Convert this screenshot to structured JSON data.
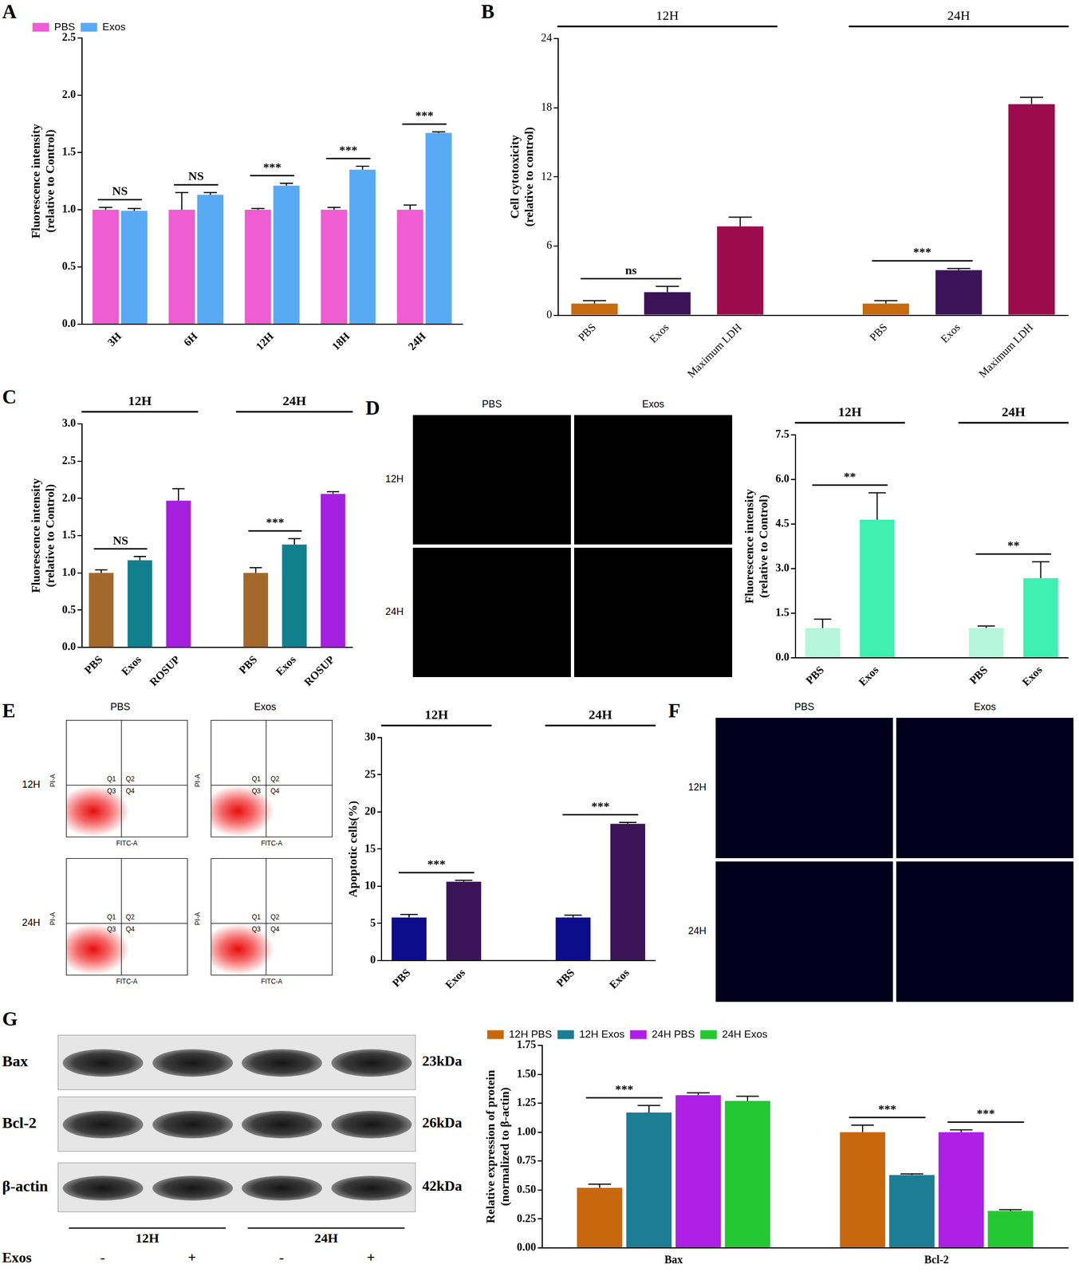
{
  "chart_data": [
    {
      "panel": "A",
      "type": "bar",
      "y_label": [
        "Fluorescence intensity",
        "(relative to Control)"
      ],
      "categories": [
        "3H",
        "6H",
        "12H",
        "18H",
        "24H"
      ],
      "series": [
        {
          "name": "PBS",
          "color": "#f05cd2",
          "values": [
            1.0,
            1.0,
            1.0,
            1.0,
            1.0
          ],
          "errors": [
            0.02,
            0.15,
            0.01,
            0.02,
            0.04
          ]
        },
        {
          "name": "Exos",
          "color": "#58aaf5",
          "values": [
            0.99,
            1.13,
            1.21,
            1.35,
            1.67
          ],
          "errors": [
            0.02,
            0.02,
            0.02,
            0.03,
            0.01
          ]
        }
      ],
      "ylim": [
        0,
        2.5
      ],
      "yticks": [
        {
          "value": 0,
          "label": "0.0"
        },
        {
          "value": 0.5,
          "label": "0.5"
        },
        {
          "value": 1,
          "label": "1.0"
        },
        {
          "value": 1.5,
          "label": "1.5"
        },
        {
          "value": 2,
          "label": "2.0"
        },
        {
          "value": 2.5,
          "label": "2.5"
        }
      ],
      "grid": false,
      "legend": "top-left",
      "significance": [
        {
          "category": "3H",
          "between": [
            "PBS",
            "Exos"
          ],
          "label": "NS"
        },
        {
          "category": "6H",
          "between": [
            "PBS",
            "Exos"
          ],
          "label": "NS"
        },
        {
          "category": "12H",
          "between": [
            "PBS",
            "Exos"
          ],
          "label": "***"
        },
        {
          "category": "18H",
          "between": [
            "PBS",
            "Exos"
          ],
          "label": "***"
        },
        {
          "category": "24H",
          "between": [
            "PBS",
            "Exos"
          ],
          "label": "***"
        }
      ]
    },
    {
      "panel": "B",
      "type": "bar",
      "y_label": [
        "Cell cytotoxicity",
        "(relative to control)"
      ],
      "groups": [
        {
          "name": "12H",
          "categories": [
            "PBS",
            "Exos",
            "Maximum LDH"
          ],
          "values": [
            1.0,
            2.0,
            7.7
          ],
          "errors": [
            0.25,
            0.5,
            0.8
          ],
          "colors": [
            "#c8690e",
            "#3b1458",
            "#9c0c4c"
          ]
        },
        {
          "name": "24H",
          "categories": [
            "PBS",
            "Exos",
            "Maximum LDH"
          ],
          "values": [
            1.0,
            3.9,
            18.3
          ],
          "errors": [
            0.25,
            0.15,
            0.6
          ],
          "colors": [
            "#c8690e",
            "#3b1458",
            "#9c0c4c"
          ]
        }
      ],
      "ylim": [
        0,
        24
      ],
      "yticks": [
        0,
        6,
        12,
        18,
        24
      ],
      "grid": false,
      "significance": [
        {
          "group": "12H",
          "between": [
            "PBS",
            "Exos"
          ],
          "label": "ns"
        },
        {
          "group": "24H",
          "between": [
            "PBS",
            "Exos"
          ],
          "label": "***"
        }
      ]
    },
    {
      "panel": "C",
      "type": "bar",
      "y_label": [
        "Fluorescence intensity",
        "(relative to Control)"
      ],
      "groups": [
        {
          "name": "12H",
          "categories": [
            "PBS",
            "Exos",
            "ROSUP"
          ],
          "values": [
            1.0,
            1.17,
            1.97
          ],
          "errors": [
            0.04,
            0.05,
            0.16
          ],
          "colors": [
            "#a2692b",
            "#10808f",
            "#a520de"
          ]
        },
        {
          "name": "24H",
          "categories": [
            "PBS",
            "Exos",
            "ROSUP"
          ],
          "values": [
            1.0,
            1.38,
            2.06
          ],
          "errors": [
            0.07,
            0.08,
            0.03
          ],
          "colors": [
            "#a2692b",
            "#10808f",
            "#a520de"
          ]
        }
      ],
      "ylim": [
        0,
        3
      ],
      "yticks": [
        {
          "value": 0,
          "label": "0.0"
        },
        {
          "value": 0.5,
          "label": "0.5"
        },
        {
          "value": 1,
          "label": "1.0"
        },
        {
          "value": 1.5,
          "label": "1.5"
        },
        {
          "value": 2,
          "label": "2.0"
        },
        {
          "value": 2.5,
          "label": "2.5"
        },
        {
          "value": 3,
          "label": "3.0"
        }
      ],
      "grid": false,
      "significance": [
        {
          "group": "12H",
          "between": [
            "PBS",
            "Exos"
          ],
          "label": "NS"
        },
        {
          "group": "24H",
          "between": [
            "PBS",
            "Exos"
          ],
          "label": "***"
        }
      ]
    },
    {
      "type": "bar",
      "y_label": [
        "Fluorescence intensity",
        "(relative to Control)"
      ],
      "groups": [
        {
          "name": "12H",
          "categories": [
            "PBS",
            "Exos"
          ],
          "values": [
            1.0,
            4.65
          ],
          "errors": [
            0.3,
            0.9
          ],
          "colors": [
            "#b6f5de",
            "#3ff0b2"
          ]
        },
        {
          "name": "24H",
          "categories": [
            "PBS",
            "Exos"
          ],
          "values": [
            1.0,
            2.68
          ],
          "errors": [
            0.07,
            0.55
          ],
          "colors": [
            "#b6f5de",
            "#3ff0b2"
          ]
        }
      ],
      "ylim": [
        0,
        7.5
      ],
      "yticks": [
        {
          "value": 0,
          "label": "0.0"
        },
        {
          "value": 1.5,
          "label": "1.5"
        },
        {
          "value": 3,
          "label": "3.0"
        },
        {
          "value": 4.5,
          "label": "4.5"
        },
        {
          "value": 6,
          "label": "6.0"
        },
        {
          "value": 7.5,
          "label": "7.5"
        }
      ],
      "grid": false,
      "significance": [
        {
          "group": "12H",
          "between": [
            "PBS",
            "Exos"
          ],
          "label": "**"
        },
        {
          "group": "24H",
          "between": [
            "PBS",
            "Exos"
          ],
          "label": "**"
        }
      ]
    },
    {
      "type": "bar",
      "y_label": [
        "Apoptotic cells(%)"
      ],
      "groups": [
        {
          "name": "12H",
          "categories": [
            "PBS",
            "Exos"
          ],
          "values": [
            5.8,
            10.6
          ],
          "errors": [
            0.4,
            0.2
          ],
          "colors": [
            "#0b0d8c",
            "#3b1458"
          ]
        },
        {
          "name": "24H",
          "categories": [
            "PBS",
            "Exos"
          ],
          "values": [
            5.8,
            18.4
          ],
          "errors": [
            0.3,
            0.2
          ],
          "colors": [
            "#0b0d8c",
            "#3b1458"
          ]
        }
      ],
      "ylim": [
        0,
        30
      ],
      "yticks": [
        0,
        5,
        10,
        15,
        20,
        25,
        30
      ],
      "grid": false,
      "significance": [
        {
          "group": "12H",
          "between": [
            "PBS",
            "Exos"
          ],
          "label": "***"
        },
        {
          "group": "24H",
          "between": [
            "PBS",
            "Exos"
          ],
          "label": "***"
        }
      ]
    },
    {
      "type": "bar",
      "y_label": [
        "Relative expression of protein",
        "(normalized to β-actin)"
      ],
      "categories": [
        "Bax",
        "Bcl-2"
      ],
      "series": [
        {
          "name": "12H PBS",
          "color": "#c8680e",
          "values": [
            0.52,
            1.0
          ],
          "errors": [
            0.03,
            0.06
          ]
        },
        {
          "name": "12H Exos",
          "color": "#1b7e95",
          "values": [
            1.17,
            0.63
          ],
          "errors": [
            0.06,
            0.01
          ]
        },
        {
          "name": "24H PBS",
          "color": "#ae1fe6",
          "values": [
            1.32,
            1.0
          ],
          "errors": [
            0.02,
            0.02
          ]
        },
        {
          "name": "24H Exos",
          "color": "#23c832",
          "values": [
            1.27,
            0.32
          ],
          "errors": [
            0.04,
            0.01
          ]
        }
      ],
      "ylim": [
        0,
        1.75
      ],
      "yticks": [
        {
          "value": 0,
          "label": "0.00"
        },
        {
          "value": 0.25,
          "label": "0.25"
        },
        {
          "value": 0.5,
          "label": "0.50"
        },
        {
          "value": 0.75,
          "label": "0.75"
        },
        {
          "value": 1,
          "label": "1.00"
        },
        {
          "value": 1.25,
          "label": "1.25"
        },
        {
          "value": 1.5,
          "label": "1.50"
        },
        {
          "value": 1.75,
          "label": "1.75"
        }
      ],
      "grid": false,
      "legend": "top-left",
      "significance": [
        {
          "category": "Bax",
          "between": [
            "12H PBS",
            "12H Exos"
          ],
          "label": "***"
        },
        {
          "category": "Bcl-2",
          "between": [
            "12H PBS",
            "12H Exos"
          ],
          "label": "***"
        },
        {
          "category": "Bcl-2",
          "between": [
            "24H PBS",
            "24H Exos"
          ],
          "label": "***"
        }
      ]
    }
  ],
  "image_panels": [
    {
      "panel": "D",
      "type": "micrograph",
      "columns": [
        "PBS",
        "Exos"
      ],
      "rows": [
        "12H",
        "24H"
      ]
    },
    {
      "panel": "E",
      "type": "flow_cytometry",
      "columns": [
        "PBS",
        "Exos"
      ],
      "rows": [
        "12H",
        "24H"
      ],
      "quadrants": [
        "Q1",
        "Q2",
        "Q3",
        "Q4"
      ],
      "x_label": "FITC-A",
      "y_label": "PI-A"
    },
    {
      "panel": "F",
      "type": "micrograph",
      "columns": [
        "PBS",
        "Exos"
      ],
      "rows": [
        "12H",
        "24H"
      ]
    },
    {
      "panel": "G",
      "type": "western_blot",
      "proteins": [
        {
          "name": "Bax",
          "size": "23kDa"
        },
        {
          "name": "Bcl-2",
          "size": "26kDa"
        },
        {
          "name": "β-actin",
          "size": "42kDa"
        }
      ],
      "groups": [
        "12H",
        "24H"
      ],
      "lane_label": "Exos",
      "lanes": [
        "-",
        "+",
        "-",
        "+"
      ]
    }
  ]
}
